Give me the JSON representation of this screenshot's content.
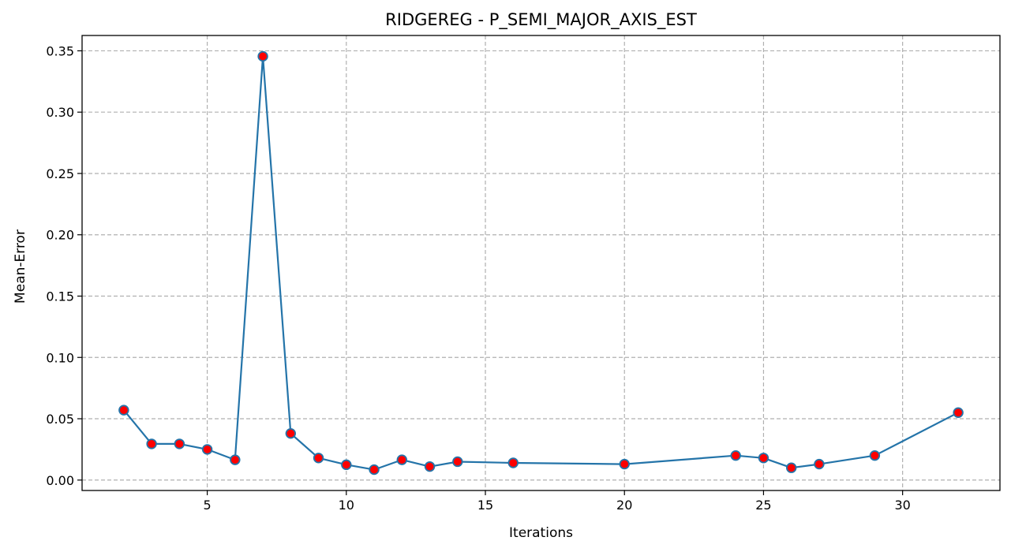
{
  "chart_data": {
    "type": "line",
    "title": "RIDGEREG - P_SEMI_MAJOR_AXIS_EST",
    "xlabel": "Iterations",
    "ylabel": "Mean-Error",
    "xlim": [
      0.5,
      33.5
    ],
    "ylim": [
      -0.0085,
      0.3625
    ],
    "xticks": [
      5,
      10,
      15,
      20,
      25,
      30
    ],
    "xtick_labels": [
      "5",
      "10",
      "15",
      "20",
      "25",
      "30"
    ],
    "yticks": [
      0.0,
      0.05,
      0.1,
      0.15,
      0.2,
      0.25,
      0.3,
      0.35
    ],
    "ytick_labels": [
      "0.00",
      "0.05",
      "0.10",
      "0.15",
      "0.20",
      "0.25",
      "0.30",
      "0.35"
    ],
    "grid": true,
    "line_color": "#2474a9",
    "marker_face_color": "#ff0000",
    "marker_edge_color": "#2474a9",
    "series": [
      {
        "x": [
          2,
          3,
          4,
          5,
          6,
          7,
          8,
          9,
          10,
          11,
          12,
          13,
          14,
          16,
          20,
          24,
          25,
          26,
          27,
          29,
          32
        ],
        "values": [
          0.057,
          0.0295,
          0.0295,
          0.025,
          0.0165,
          0.3455,
          0.038,
          0.018,
          0.0125,
          0.0085,
          0.0165,
          0.011,
          0.015,
          0.014,
          0.013,
          0.02,
          0.018,
          0.01,
          0.013,
          0.02,
          0.055
        ]
      }
    ]
  }
}
